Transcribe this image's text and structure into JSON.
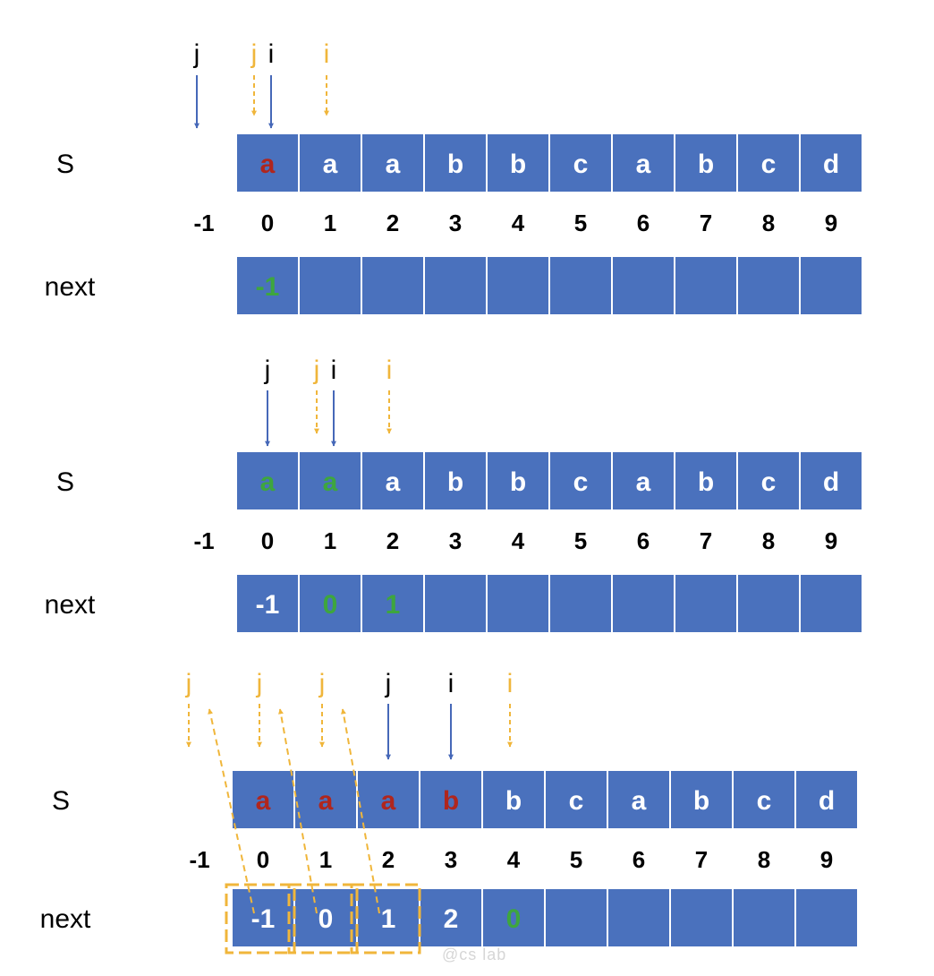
{
  "colors": {
    "cell_fill": "#4a71bd",
    "cell_border": "#ffffff",
    "white_text": "#ffffff",
    "red_text": "#b0261d",
    "green_text": "#3ea63e",
    "blue_pointer": "#4668b8",
    "orange_pointer": "#f0b63b",
    "index_text": "#000000"
  },
  "indices": [
    "-1",
    "0",
    "1",
    "2",
    "3",
    "4",
    "5",
    "6",
    "7",
    "8",
    "9"
  ],
  "watermark": "@cs lab",
  "panels": [
    {
      "s_label": "S",
      "next_label": "next",
      "s_cells": [
        {
          "text": "a",
          "color": "red"
        },
        {
          "text": "a",
          "color": "white"
        },
        {
          "text": "a",
          "color": "white"
        },
        {
          "text": "b",
          "color": "white"
        },
        {
          "text": "b",
          "color": "white"
        },
        {
          "text": "c",
          "color": "white"
        },
        {
          "text": "a",
          "color": "white"
        },
        {
          "text": "b",
          "color": "white"
        },
        {
          "text": "c",
          "color": "white"
        },
        {
          "text": "d",
          "color": "white"
        }
      ],
      "next_cells": [
        {
          "text": "-1",
          "color": "green"
        },
        {
          "text": "",
          "color": "white"
        },
        {
          "text": "",
          "color": "white"
        },
        {
          "text": "",
          "color": "white"
        },
        {
          "text": "",
          "color": "white"
        },
        {
          "text": "",
          "color": "white"
        },
        {
          "text": "",
          "color": "white"
        },
        {
          "text": "",
          "color": "white"
        },
        {
          "text": "",
          "color": "white"
        },
        {
          "text": "",
          "color": "white"
        }
      ],
      "pointers": [
        {
          "label": "j",
          "style": "blue",
          "cell": -1
        },
        {
          "label": "j",
          "style": "orange",
          "cell": 0
        },
        {
          "label": "i",
          "style": "blue",
          "cell": 0
        },
        {
          "label": "i",
          "style": "orange",
          "cell": 1
        }
      ],
      "back_arrows": [],
      "dashed_boxes": []
    },
    {
      "s_label": "S",
      "next_label": "next",
      "s_cells": [
        {
          "text": "a",
          "color": "green"
        },
        {
          "text": "a",
          "color": "green"
        },
        {
          "text": "a",
          "color": "white"
        },
        {
          "text": "b",
          "color": "white"
        },
        {
          "text": "b",
          "color": "white"
        },
        {
          "text": "c",
          "color": "white"
        },
        {
          "text": "a",
          "color": "white"
        },
        {
          "text": "b",
          "color": "white"
        },
        {
          "text": "c",
          "color": "white"
        },
        {
          "text": "d",
          "color": "white"
        }
      ],
      "next_cells": [
        {
          "text": "-1",
          "color": "white"
        },
        {
          "text": "0",
          "color": "green"
        },
        {
          "text": "1",
          "color": "green"
        },
        {
          "text": "",
          "color": "white"
        },
        {
          "text": "",
          "color": "white"
        },
        {
          "text": "",
          "color": "white"
        },
        {
          "text": "",
          "color": "white"
        },
        {
          "text": "",
          "color": "white"
        },
        {
          "text": "",
          "color": "white"
        },
        {
          "text": "",
          "color": "white"
        }
      ],
      "pointers": [
        {
          "label": "j",
          "style": "blue",
          "cell": 0
        },
        {
          "label": "j",
          "style": "orange",
          "cell": 1
        },
        {
          "label": "i",
          "style": "blue",
          "cell": 1
        },
        {
          "label": "i",
          "style": "orange",
          "cell": 2
        }
      ],
      "back_arrows": [],
      "dashed_boxes": []
    },
    {
      "s_label": "S",
      "next_label": "next",
      "s_cells": [
        {
          "text": "a",
          "color": "red"
        },
        {
          "text": "a",
          "color": "red"
        },
        {
          "text": "a",
          "color": "red"
        },
        {
          "text": "b",
          "color": "red"
        },
        {
          "text": "b",
          "color": "white"
        },
        {
          "text": "c",
          "color": "white"
        },
        {
          "text": "a",
          "color": "white"
        },
        {
          "text": "b",
          "color": "white"
        },
        {
          "text": "c",
          "color": "white"
        },
        {
          "text": "d",
          "color": "white"
        }
      ],
      "next_cells": [
        {
          "text": "-1",
          "color": "white"
        },
        {
          "text": "0",
          "color": "white"
        },
        {
          "text": "1",
          "color": "white"
        },
        {
          "text": "2",
          "color": "white"
        },
        {
          "text": "0",
          "color": "green"
        },
        {
          "text": "",
          "color": "white"
        },
        {
          "text": "",
          "color": "white"
        },
        {
          "text": "",
          "color": "white"
        },
        {
          "text": "",
          "color": "white"
        },
        {
          "text": "",
          "color": "white"
        }
      ],
      "pointers": [
        {
          "label": "j",
          "style": "orange",
          "cell": -1
        },
        {
          "label": "j",
          "style": "orange",
          "cell": 0
        },
        {
          "label": "j",
          "style": "orange",
          "cell": 1
        },
        {
          "label": "j",
          "style": "blue",
          "cell": 2
        },
        {
          "label": "i",
          "style": "blue",
          "cell": 3
        },
        {
          "label": "i",
          "style": "orange",
          "cell": 4
        }
      ],
      "back_arrows": [
        {
          "from_next_cell": 0,
          "to_pointer_cell": -1
        },
        {
          "from_next_cell": 1,
          "to_pointer_cell": 0
        },
        {
          "from_next_cell": 2,
          "to_pointer_cell": 1
        }
      ],
      "dashed_boxes": [
        0,
        1,
        2
      ]
    }
  ]
}
